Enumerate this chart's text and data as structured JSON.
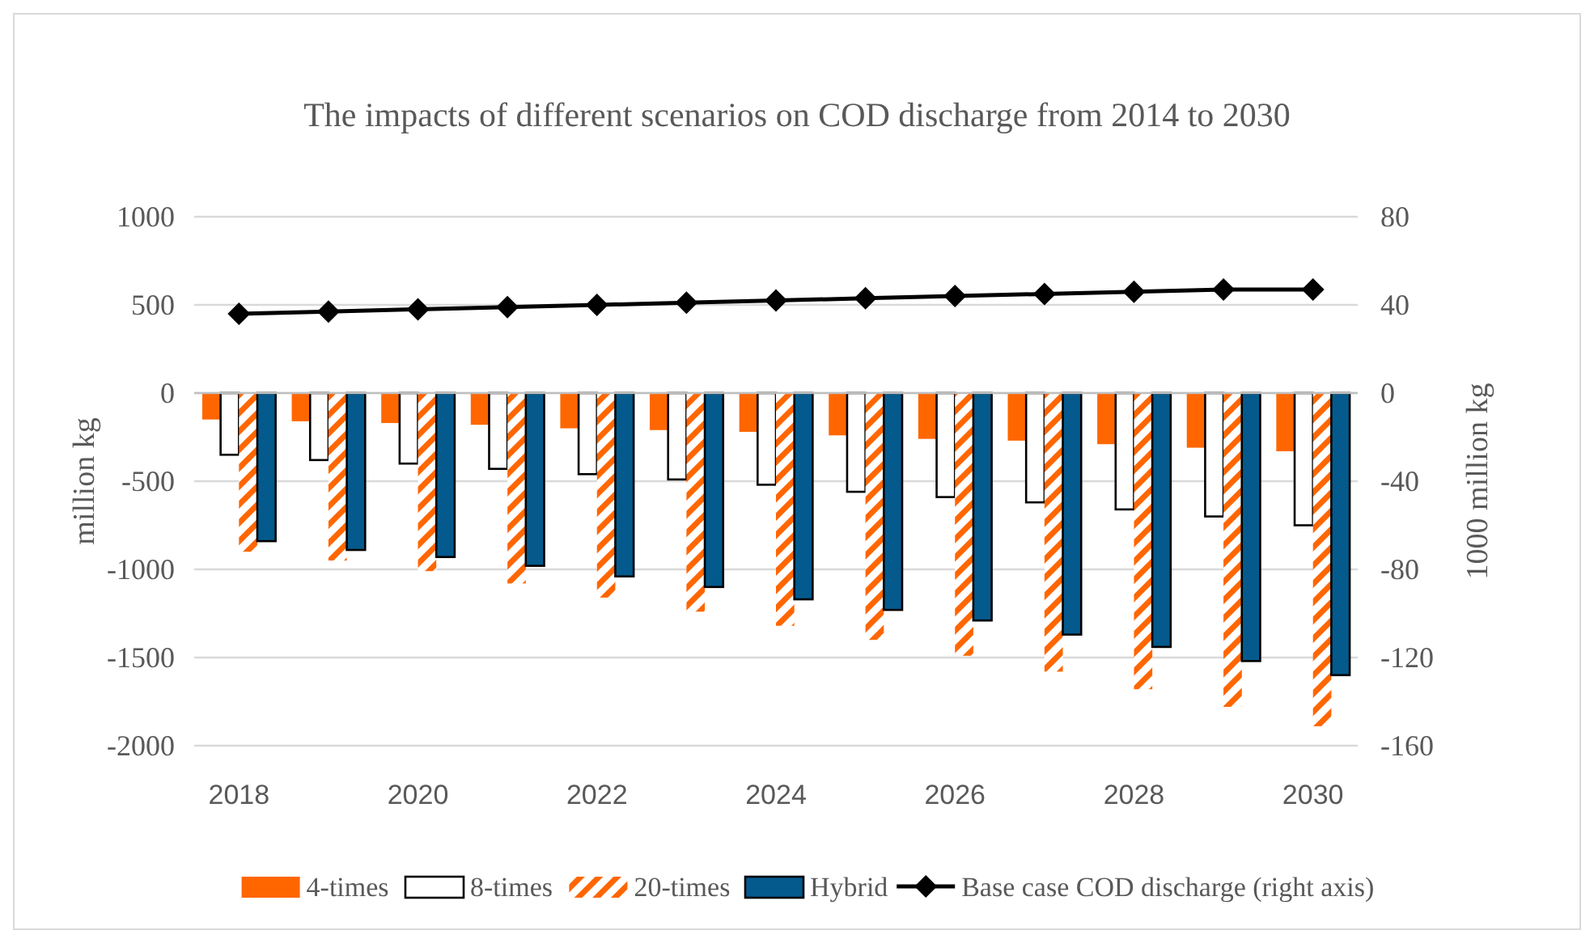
{
  "chart_data": {
    "type": "bar",
    "title": "The impacts of different scenarios on COD discharge from 2014 to 2030",
    "ylabel": "million kg",
    "y2label": "1000 million kg",
    "categories": [
      "2018",
      null,
      "2020",
      null,
      "2022",
      null,
      "2024",
      null,
      "2026",
      null,
      "2028",
      null,
      "2030"
    ],
    "series": [
      {
        "name": "4-times",
        "color": "#ff6600",
        "values": [
          -150,
          -160,
          -170,
          -180,
          -200,
          -210,
          -220,
          -240,
          -260,
          -270,
          -290,
          -310,
          -330
        ]
      },
      {
        "name": "8-times",
        "color": "#ffffff",
        "values": [
          -350,
          -380,
          -400,
          -430,
          -460,
          -490,
          -520,
          -560,
          -590,
          -620,
          -660,
          -700,
          -750
        ]
      },
      {
        "name": "20-times",
        "color": "#ff6600",
        "values": [
          -900,
          -950,
          -1010,
          -1080,
          -1160,
          -1240,
          -1320,
          -1400,
          -1490,
          -1580,
          -1680,
          -1780,
          -1890
        ]
      },
      {
        "name": "Hybrid",
        "color": "#045a8d",
        "values": [
          -840,
          -890,
          -930,
          -980,
          -1040,
          -1100,
          -1170,
          -1230,
          -1290,
          -1370,
          -1440,
          -1520,
          -1600
        ]
      },
      {
        "name": "Base case COD discharge (right axis)",
        "type": "line",
        "axis": "y2",
        "color": "#000000",
        "marker": "diamond",
        "values": [
          36,
          37,
          38,
          39,
          40,
          41,
          42,
          43,
          44,
          45,
          46,
          47,
          47
        ]
      }
    ],
    "ylim": [
      -2000,
      1000
    ],
    "yticks": [
      -2000,
      -1500,
      -1000,
      -500,
      0,
      500,
      1000
    ],
    "y2lim": [
      -160,
      80
    ],
    "y2ticks": [
      -160,
      -120,
      -80,
      -40,
      0,
      40,
      80
    ],
    "grid": "y",
    "legend": "bottom"
  }
}
